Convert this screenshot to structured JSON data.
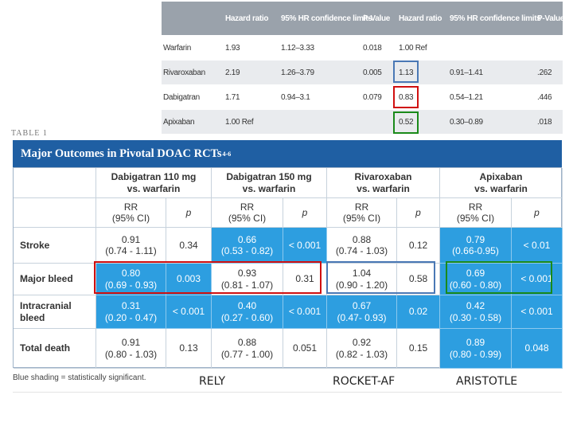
{
  "hr_table": {
    "headers": [
      "Hazard ratio",
      "95% HR confidence limits",
      "P-Value",
      "Hazard ratio",
      "95% HR confidence limits",
      "P-Value"
    ],
    "rows": [
      {
        "drug": "Warfarin",
        "hr1": "1.93",
        "ci1": "1.12–3.33",
        "p1": "0.018",
        "hr2": "1.00 Ref",
        "ci2": "",
        "p2": ""
      },
      {
        "drug": "Rivaroxaban",
        "hr1": "2.19",
        "ci1": "1.26–3.79",
        "p1": "0.005",
        "hr2": "1.13",
        "ci2": "0.91–1.41",
        "p2": ".262"
      },
      {
        "drug": "Dabigatran",
        "hr1": "1.71",
        "ci1": "0.94–3.1",
        "p1": "0.079",
        "hr2": "0.83",
        "ci2": "0.54–1.21",
        "p2": ".446"
      },
      {
        "drug": "Apixaban",
        "hr1": "1.00 Ref",
        "ci1": "",
        "p1": "",
        "hr2": "0.52",
        "ci2": "0.30–0.89",
        "p2": ".018"
      }
    ],
    "highlight_colors": {
      "rivaroxaban": "#4a78b5",
      "dabigatran": "#d01010",
      "apixaban": "#1a8a1a"
    }
  },
  "table_label": "TABLE 1",
  "table_title": "Major Outcomes in Pivotal DOAC RCTs",
  "table_title_sup": "4-6",
  "columns": [
    {
      "name_line1": "Dabigatran 110 mg",
      "name_line2": "vs. warfarin"
    },
    {
      "name_line1": "Dabigatran 150 mg",
      "name_line2": "vs. warfarin"
    },
    {
      "name_line1": "Rivaroxaban",
      "name_line2": "vs. warfarin"
    },
    {
      "name_line1": "Apixaban",
      "name_line2": "vs. warfarin"
    }
  ],
  "subheaders": {
    "rr_line1": "RR",
    "rr_line2": "(95% CI)",
    "p": "p"
  },
  "rows": [
    {
      "label_line1": "Stroke",
      "label_line2": "",
      "cells": [
        {
          "rr": "0.91",
          "ci": "(0.74 - 1.11)",
          "p": "0.34",
          "shaded": false
        },
        {
          "rr": "0.66",
          "ci": "(0.53 - 0.82)",
          "p": "< 0.001",
          "shaded": true
        },
        {
          "rr": "0.88",
          "ci": "(0.74 - 1.03)",
          "p": "0.12",
          "shaded": false
        },
        {
          "rr": "0.79",
          "ci": "(0.66-0.95)",
          "p": "< 0.01",
          "shaded": true
        }
      ]
    },
    {
      "label_line1": "Major bleed",
      "label_line2": "",
      "cells": [
        {
          "rr": "0.80",
          "ci": "(0.69 - 0.93)",
          "p": "0.003",
          "shaded": true
        },
        {
          "rr": "0.93",
          "ci": "(0.81 - 1.07)",
          "p": "0.31",
          "shaded": false
        },
        {
          "rr": "1.04",
          "ci": "(0.90 - 1.20)",
          "p": "0.58",
          "shaded": false
        },
        {
          "rr": "0.69",
          "ci": "(0.60 - 0.80)",
          "p": "< 0.001",
          "shaded": true
        }
      ]
    },
    {
      "label_line1": "Intracranial",
      "label_line2": "bleed",
      "cells": [
        {
          "rr": "0.31",
          "ci": "(0.20 - 0.47)",
          "p": "< 0.001",
          "shaded": true
        },
        {
          "rr": "0.40",
          "ci": "(0.27 - 0.60)",
          "p": "< 0.001",
          "shaded": true
        },
        {
          "rr": "0.67",
          "ci": "(0.47- 0.93)",
          "p": "0.02",
          "shaded": true
        },
        {
          "rr": "0.42",
          "ci": "(0.30 - 0.58)",
          "p": "< 0.001",
          "shaded": true
        }
      ]
    },
    {
      "label_line1": "Total death",
      "label_line2": "",
      "cells": [
        {
          "rr": "0.91",
          "ci": "(0.80 - 1.03)",
          "p": "0.13",
          "shaded": false
        },
        {
          "rr": "0.88",
          "ci": "(0.77 - 1.00)",
          "p": "0.051",
          "shaded": false
        },
        {
          "rr": "0.92",
          "ci": "(0.82 - 1.03)",
          "p": "0.15",
          "shaded": false
        },
        {
          "rr": "0.89",
          "ci": "(0.80 - 0.99)",
          "p": "0.048",
          "shaded": true
        }
      ]
    }
  ],
  "footnote": "Blue shading = statistically significant.",
  "trial_labels": [
    "RELY",
    "ROCKET-AF",
    "ARISTOTLE"
  ],
  "box_colors": {
    "red": "#d01010",
    "blue": "#4a78b5",
    "green": "#1a8a1a"
  }
}
